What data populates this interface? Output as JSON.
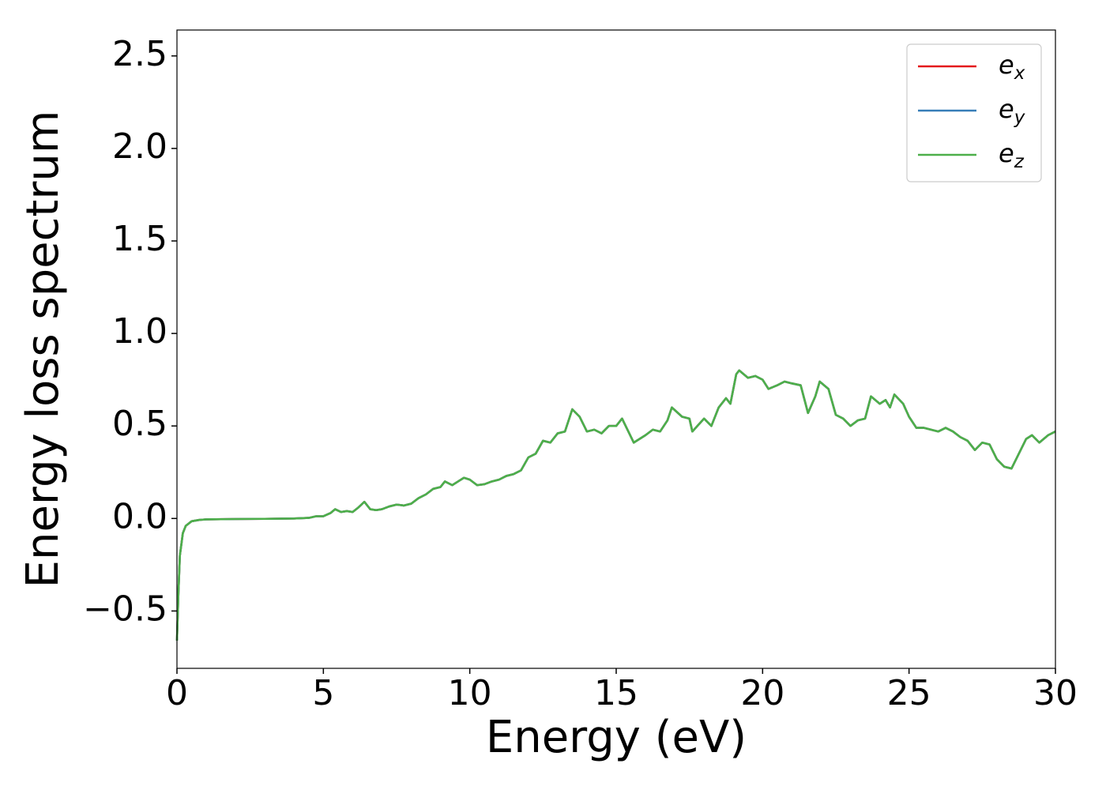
{
  "chart_data": {
    "type": "line",
    "xlabel": "Energy (eV)",
    "ylabel": "Energy loss spectrum",
    "x": [
      0,
      0.05,
      0.1,
      0.2,
      0.3,
      0.5,
      0.75,
      1,
      2,
      3,
      4,
      4.5,
      4.75,
      5,
      5.25,
      5.4,
      5.6,
      5.8,
      6,
      6.2,
      6.4,
      6.6,
      6.8,
      7,
      7.25,
      7.5,
      7.75,
      8,
      8.25,
      8.5,
      8.75,
      9,
      9.15,
      9.4,
      9.6,
      9.8,
      10,
      10.25,
      10.5,
      10.75,
      11,
      11.25,
      11.5,
      11.75,
      12,
      12.25,
      12.5,
      12.75,
      13,
      13.25,
      13.5,
      13.75,
      14,
      14.25,
      14.5,
      14.75,
      15,
      15.2,
      15.6,
      16,
      16.25,
      16.5,
      16.75,
      16.9,
      17.25,
      17.5,
      17.6,
      18,
      18.25,
      18.5,
      18.75,
      18.9,
      19.1,
      19.2,
      19.5,
      19.75,
      20,
      20.2,
      20.5,
      20.75,
      21,
      21.3,
      21.55,
      21.8,
      21.95,
      22.25,
      22.5,
      22.75,
      23,
      23.25,
      23.5,
      23.7,
      24,
      24.2,
      24.35,
      24.5,
      24.8,
      25,
      25.25,
      25.5,
      25.75,
      26,
      26.25,
      26.5,
      26.75,
      27,
      27.25,
      27.5,
      27.75,
      28,
      28.25,
      28.5,
      28.75,
      29,
      29.2,
      29.45,
      29.75,
      30
    ],
    "series": [
      {
        "name": "ex",
        "color": "#e41a1c",
        "values": [
          -0.66,
          -0.4,
          -0.2,
          -0.08,
          -0.04,
          -0.015,
          -0.008,
          -0.005,
          -0.003,
          -0.002,
          0,
          0.003,
          0.012,
          0.012,
          0.03,
          0.05,
          0.035,
          0.04,
          0.035,
          0.06,
          0.09,
          0.05,
          0.045,
          0.05,
          0.065,
          0.075,
          0.07,
          0.08,
          0.11,
          0.13,
          0.16,
          0.17,
          0.2,
          0.18,
          0.2,
          0.22,
          0.21,
          0.18,
          0.185,
          0.2,
          0.21,
          0.23,
          0.24,
          0.26,
          0.33,
          0.35,
          0.42,
          0.41,
          0.46,
          0.47,
          0.59,
          0.55,
          0.47,
          0.48,
          0.46,
          0.5,
          0.5,
          0.54,
          0.41,
          0.45,
          0.48,
          0.47,
          0.53,
          0.6,
          0.55,
          0.54,
          0.47,
          0.54,
          0.5,
          0.6,
          0.65,
          0.62,
          0.78,
          0.8,
          0.76,
          0.77,
          0.75,
          0.7,
          0.72,
          0.74,
          0.73,
          0.72,
          0.57,
          0.66,
          0.74,
          0.7,
          0.56,
          0.54,
          0.5,
          0.53,
          0.54,
          0.66,
          0.62,
          0.64,
          0.6,
          0.67,
          0.62,
          0.55,
          0.49,
          0.49,
          0.48,
          0.47,
          0.49,
          0.47,
          0.44,
          0.42,
          0.37,
          0.41,
          0.4,
          0.32,
          0.28,
          0.27,
          0.35,
          0.43,
          0.45,
          0.41,
          0.45,
          0.47
        ]
      },
      {
        "name": "ey",
        "color": "#377eb8",
        "values": [
          -0.66,
          -0.4,
          -0.2,
          -0.08,
          -0.04,
          -0.015,
          -0.008,
          -0.005,
          -0.003,
          -0.002,
          0,
          0.003,
          0.012,
          0.012,
          0.03,
          0.05,
          0.035,
          0.04,
          0.035,
          0.06,
          0.09,
          0.05,
          0.045,
          0.05,
          0.065,
          0.075,
          0.07,
          0.08,
          0.11,
          0.13,
          0.16,
          0.17,
          0.2,
          0.18,
          0.2,
          0.22,
          0.21,
          0.18,
          0.185,
          0.2,
          0.21,
          0.23,
          0.24,
          0.26,
          0.33,
          0.35,
          0.42,
          0.41,
          0.46,
          0.47,
          0.59,
          0.55,
          0.47,
          0.48,
          0.46,
          0.5,
          0.5,
          0.54,
          0.41,
          0.45,
          0.48,
          0.47,
          0.53,
          0.6,
          0.55,
          0.54,
          0.47,
          0.54,
          0.5,
          0.6,
          0.65,
          0.62,
          0.78,
          0.8,
          0.76,
          0.77,
          0.75,
          0.7,
          0.72,
          0.74,
          0.73,
          0.72,
          0.57,
          0.66,
          0.74,
          0.7,
          0.56,
          0.54,
          0.5,
          0.53,
          0.54,
          0.66,
          0.62,
          0.64,
          0.6,
          0.67,
          0.62,
          0.55,
          0.49,
          0.49,
          0.48,
          0.47,
          0.49,
          0.47,
          0.44,
          0.42,
          0.37,
          0.41,
          0.4,
          0.32,
          0.28,
          0.27,
          0.35,
          0.43,
          0.45,
          0.41,
          0.45,
          0.47
        ]
      },
      {
        "name": "ez",
        "color": "#4daf4a",
        "values": [
          -0.66,
          -0.4,
          -0.2,
          -0.08,
          -0.04,
          -0.015,
          -0.008,
          -0.005,
          -0.003,
          -0.002,
          0,
          0.003,
          0.012,
          0.012,
          0.03,
          0.05,
          0.035,
          0.04,
          0.035,
          0.06,
          0.09,
          0.05,
          0.045,
          0.05,
          0.065,
          0.075,
          0.07,
          0.08,
          0.11,
          0.13,
          0.16,
          0.17,
          0.2,
          0.18,
          0.2,
          0.22,
          0.21,
          0.18,
          0.185,
          0.2,
          0.21,
          0.23,
          0.24,
          0.26,
          0.33,
          0.35,
          0.42,
          0.41,
          0.46,
          0.47,
          0.59,
          0.55,
          0.47,
          0.48,
          0.46,
          0.5,
          0.5,
          0.54,
          0.41,
          0.45,
          0.48,
          0.47,
          0.53,
          0.6,
          0.55,
          0.54,
          0.47,
          0.54,
          0.5,
          0.6,
          0.65,
          0.62,
          0.78,
          0.8,
          0.76,
          0.77,
          0.75,
          0.7,
          0.72,
          0.74,
          0.73,
          0.72,
          0.57,
          0.66,
          0.74,
          0.7,
          0.56,
          0.54,
          0.5,
          0.53,
          0.54,
          0.66,
          0.62,
          0.64,
          0.6,
          0.67,
          0.62,
          0.55,
          0.49,
          0.49,
          0.48,
          0.47,
          0.49,
          0.47,
          0.44,
          0.42,
          0.37,
          0.41,
          0.4,
          0.32,
          0.28,
          0.27,
          0.35,
          0.43,
          0.45,
          0.41,
          0.45,
          0.47
        ]
      }
    ],
    "xlim": [
      0,
      30
    ],
    "xticks": [
      0,
      5,
      10,
      15,
      20,
      25,
      30
    ],
    "ylim": [
      -0.81,
      2.64
    ],
    "yticks": [
      {
        "value": -0.5,
        "label": "−0.5"
      },
      {
        "value": 0,
        "label": "0.0"
      },
      0.5,
      {
        "value": 1,
        "label": "1.0"
      },
      1.5,
      {
        "value": 2,
        "label": "2.0"
      },
      2.5
    ],
    "grid": false,
    "legend": "upper right"
  }
}
